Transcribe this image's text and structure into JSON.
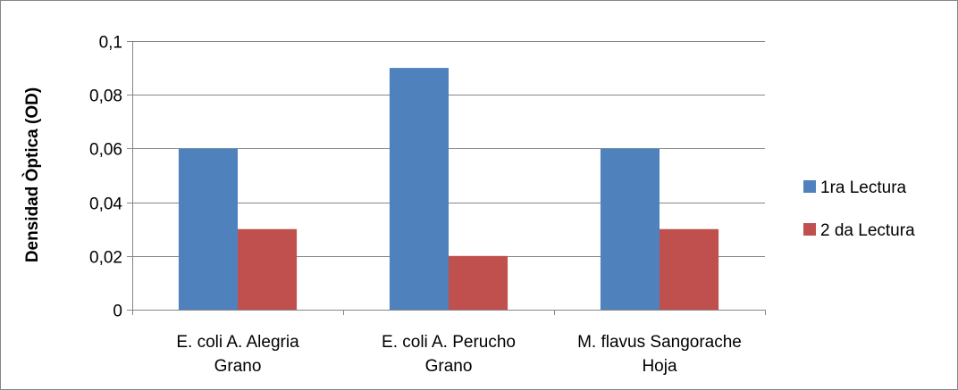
{
  "chart_data": {
    "type": "bar",
    "title": "",
    "xlabel": "",
    "ylabel": "Densidad Òptica (OD)",
    "categories": [
      [
        "E. coli A.  Alegria",
        "Grano"
      ],
      [
        "E. coli A. Perucho",
        "Grano"
      ],
      [
        "M. flavus Sangorache",
        "Hoja"
      ]
    ],
    "series": [
      {
        "name": "1ra Lectura",
        "values": [
          0.06,
          0.09,
          0.06
        ],
        "color": "#4F81BD"
      },
      {
        "name": "2 da Lectura",
        "values": [
          0.03,
          0.02,
          0.03
        ],
        "color": "#C0504D"
      }
    ],
    "ylim": [
      0,
      0.1
    ],
    "yticks": [
      {
        "value": 0,
        "label": "0"
      },
      {
        "value": 0.02,
        "label": "0,02"
      },
      {
        "value": 0.04,
        "label": "0,04"
      },
      {
        "value": 0.06,
        "label": "0,06"
      },
      {
        "value": 0.08,
        "label": "0,08"
      },
      {
        "value": 0.1,
        "label": "0,1"
      }
    ],
    "grid": true,
    "legend_position": "right"
  }
}
